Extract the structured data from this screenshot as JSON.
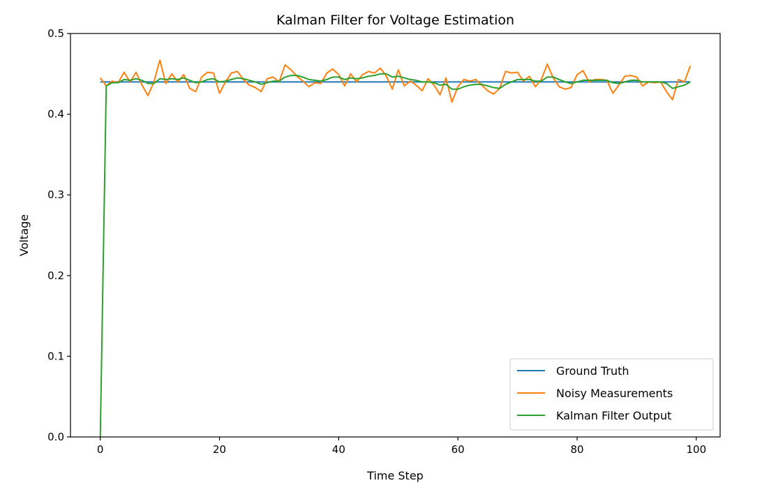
{
  "chart_data": {
    "type": "line",
    "title": "Kalman Filter for Voltage Estimation",
    "xlabel": "Time Step",
    "ylabel": "Voltage",
    "xlim": [
      -5,
      104
    ],
    "ylim": [
      0.0,
      0.5
    ],
    "xticks": [
      0,
      20,
      40,
      60,
      80,
      100
    ],
    "yticks": [
      0.0,
      0.1,
      0.2,
      0.3,
      0.4,
      0.5
    ],
    "xtick_labels": [
      "0",
      "20",
      "40",
      "60",
      "80",
      "100"
    ],
    "ytick_labels": [
      "0.0",
      "0.1",
      "0.2",
      "0.3",
      "0.4",
      "0.5"
    ],
    "grid": false,
    "legend_position": "lower-right",
    "x": [
      0,
      1,
      2,
      3,
      4,
      5,
      6,
      7,
      8,
      9,
      10,
      11,
      12,
      13,
      14,
      15,
      16,
      17,
      18,
      19,
      20,
      21,
      22,
      23,
      24,
      25,
      26,
      27,
      28,
      29,
      30,
      31,
      32,
      33,
      34,
      35,
      36,
      37,
      38,
      39,
      40,
      41,
      42,
      43,
      44,
      45,
      46,
      47,
      48,
      49,
      50,
      51,
      52,
      53,
      54,
      55,
      56,
      57,
      58,
      59,
      60,
      61,
      62,
      63,
      64,
      65,
      66,
      67,
      68,
      69,
      70,
      71,
      72,
      73,
      74,
      75,
      76,
      77,
      78,
      79,
      80,
      81,
      82,
      83,
      84,
      85,
      86,
      87,
      88,
      89,
      90,
      91,
      92,
      93,
      94,
      95,
      96,
      97,
      98,
      99
    ],
    "series": [
      {
        "name": "Ground Truth",
        "color": "#1f77b4",
        "values": [
          0.44,
          0.44,
          0.44,
          0.44,
          0.44,
          0.44,
          0.44,
          0.44,
          0.44,
          0.44,
          0.44,
          0.44,
          0.44,
          0.44,
          0.44,
          0.44,
          0.44,
          0.44,
          0.44,
          0.44,
          0.44,
          0.44,
          0.44,
          0.44,
          0.44,
          0.44,
          0.44,
          0.44,
          0.44,
          0.44,
          0.44,
          0.44,
          0.44,
          0.44,
          0.44,
          0.44,
          0.44,
          0.44,
          0.44,
          0.44,
          0.44,
          0.44,
          0.44,
          0.44,
          0.44,
          0.44,
          0.44,
          0.44,
          0.44,
          0.44,
          0.44,
          0.44,
          0.44,
          0.44,
          0.44,
          0.44,
          0.44,
          0.44,
          0.44,
          0.44,
          0.44,
          0.44,
          0.44,
          0.44,
          0.44,
          0.44,
          0.44,
          0.44,
          0.44,
          0.44,
          0.44,
          0.44,
          0.44,
          0.44,
          0.44,
          0.44,
          0.44,
          0.44,
          0.44,
          0.44,
          0.44,
          0.44,
          0.44,
          0.44,
          0.44,
          0.44,
          0.44,
          0.44,
          0.44,
          0.44,
          0.44,
          0.44,
          0.44,
          0.44,
          0.44,
          0.44,
          0.44,
          0.44,
          0.44,
          0.44
        ]
      },
      {
        "name": "Noisy Measurements",
        "color": "#ff7f0e",
        "values": [
          0.445,
          0.435,
          0.441,
          0.439,
          0.452,
          0.44,
          0.452,
          0.436,
          0.423,
          0.44,
          0.467,
          0.438,
          0.45,
          0.44,
          0.449,
          0.432,
          0.428,
          0.446,
          0.452,
          0.451,
          0.426,
          0.44,
          0.451,
          0.453,
          0.443,
          0.436,
          0.433,
          0.428,
          0.444,
          0.446,
          0.44,
          0.461,
          0.455,
          0.447,
          0.441,
          0.434,
          0.439,
          0.438,
          0.451,
          0.456,
          0.449,
          0.435,
          0.45,
          0.44,
          0.449,
          0.453,
          0.451,
          0.457,
          0.447,
          0.431,
          0.455,
          0.435,
          0.441,
          0.436,
          0.429,
          0.444,
          0.436,
          0.424,
          0.445,
          0.415,
          0.434,
          0.443,
          0.441,
          0.443,
          0.436,
          0.429,
          0.425,
          0.432,
          0.453,
          0.451,
          0.452,
          0.441,
          0.447,
          0.434,
          0.443,
          0.462,
          0.445,
          0.434,
          0.431,
          0.433,
          0.449,
          0.454,
          0.44,
          0.443,
          0.443,
          0.442,
          0.426,
          0.436,
          0.447,
          0.448,
          0.446,
          0.435,
          0.44,
          0.439,
          0.44,
          0.428,
          0.418,
          0.443,
          0.44,
          0.46
        ]
      },
      {
        "name": "Kalman Filter Output",
        "color": "#2ca02c",
        "values": [
          0.0,
          0.435,
          0.439,
          0.439,
          0.443,
          0.442,
          0.444,
          0.442,
          0.438,
          0.438,
          0.444,
          0.443,
          0.444,
          0.443,
          0.445,
          0.442,
          0.439,
          0.44,
          0.443,
          0.444,
          0.44,
          0.441,
          0.443,
          0.445,
          0.444,
          0.442,
          0.44,
          0.437,
          0.439,
          0.441,
          0.441,
          0.446,
          0.448,
          0.448,
          0.446,
          0.443,
          0.442,
          0.441,
          0.443,
          0.446,
          0.446,
          0.443,
          0.445,
          0.444,
          0.445,
          0.447,
          0.448,
          0.45,
          0.45,
          0.446,
          0.447,
          0.445,
          0.443,
          0.442,
          0.44,
          0.44,
          0.439,
          0.436,
          0.437,
          0.431,
          0.431,
          0.434,
          0.436,
          0.437,
          0.437,
          0.435,
          0.433,
          0.432,
          0.437,
          0.44,
          0.443,
          0.443,
          0.443,
          0.441,
          0.441,
          0.446,
          0.446,
          0.443,
          0.44,
          0.438,
          0.44,
          0.442,
          0.442,
          0.442,
          0.442,
          0.442,
          0.439,
          0.438,
          0.44,
          0.442,
          0.442,
          0.44,
          0.44,
          0.44,
          0.44,
          0.438,
          0.432,
          0.434,
          0.436,
          0.44
        ]
      }
    ]
  }
}
